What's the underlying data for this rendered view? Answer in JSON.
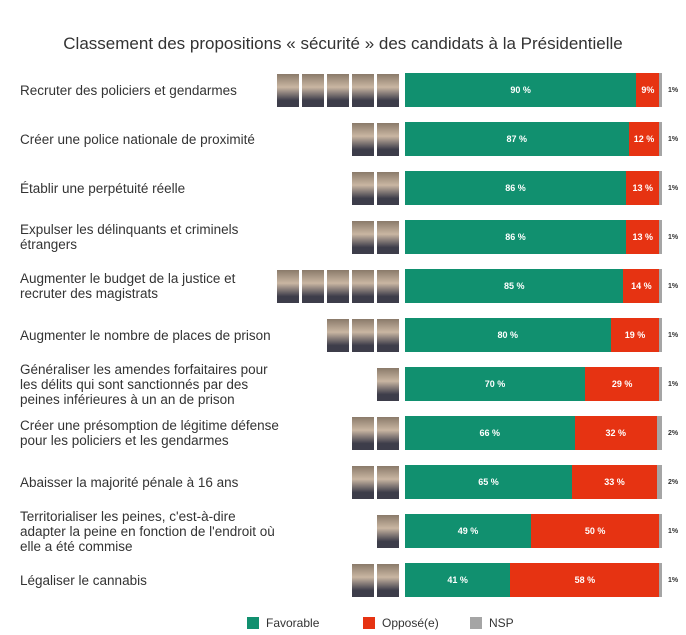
{
  "chart_data": {
    "type": "stacked-bar",
    "title": "Classement des propositions « sécurité » des candidats à la Présidentielle",
    "categories": [
      "Recruter des policiers et gendarmes",
      "Créer une police nationale de proximité",
      "Établir une perpétuité réelle",
      "Expulser les délinquants et criminels étrangers",
      "Augmenter le budget de la justice et recruter des magistrats",
      "Augmenter le nombre de places de prison",
      "Généraliser les amendes forfaitaires pour les délits qui sont sanctionnés par des peines inférieures à un an de prison",
      "Créer une présomption de légitime défense pour les policiers et les gendarmes",
      "Abaisser la majorité pénale à 16 ans",
      "Territorialiser les peines, c'est-à-dire adapter la peine en fonction de l'endroit où elle a été commise",
      "Légaliser le cannabis"
    ],
    "series": [
      {
        "name": "Favorable",
        "color": "#11906f",
        "values": [
          90,
          87,
          86,
          86,
          85,
          80,
          70,
          66,
          65,
          49,
          41
        ],
        "value_labels": [
          "90 %",
          "87 %",
          "86 %",
          "86 %",
          "85 %",
          "80 %",
          "70 %",
          "66 %",
          "65 %",
          "49 %",
          "41 %"
        ]
      },
      {
        "name": "Opposé(e)",
        "color": "#e63312",
        "values": [
          9,
          12,
          13,
          13,
          14,
          19,
          29,
          32,
          33,
          50,
          58
        ],
        "value_labels": [
          "9%",
          "12 %",
          "13 %",
          "13 %",
          "14 %",
          "19 %",
          "29 %",
          "32 %",
          "33 %",
          "50 %",
          "58 %"
        ]
      },
      {
        "name": "NSP",
        "color": "#a5a5a5",
        "values": [
          1,
          1,
          1,
          1,
          1,
          1,
          1,
          2,
          2,
          1,
          1
        ],
        "value_labels": [
          "1%",
          "1%",
          "1%",
          "1%",
          "1%",
          "1%",
          "1%",
          "2%",
          "2%",
          "1%",
          "1%"
        ]
      }
    ]
  }
}
